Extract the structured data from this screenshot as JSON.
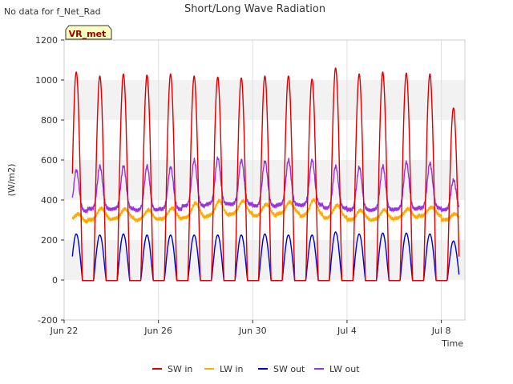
{
  "chart_data": {
    "type": "line",
    "title": "Short/Long Wave Radiation",
    "corner_note": "No data for f_Net_Rad",
    "station_label": "VR_met",
    "ylabel": "(W/m2)",
    "xlabel": "Time",
    "ylim": [
      -200,
      1200
    ],
    "yticks": [
      -200,
      0,
      200,
      400,
      600,
      800,
      1000,
      1200
    ],
    "xlim_days": [
      22,
      39
    ],
    "xticks": [
      {
        "day": 22,
        "label": "Jun 22"
      },
      {
        "day": 26,
        "label": "Jun 26"
      },
      {
        "day": 30,
        "label": "Jun 30"
      },
      {
        "day": 34,
        "label": "Jul 4"
      },
      {
        "day": 38,
        "label": "Jul 8"
      }
    ],
    "grid": true,
    "legend_position": "bottom",
    "series": [
      {
        "name": "SW in",
        "color": "#dd0000",
        "night": 0,
        "peaks": [
          1040,
          1020,
          1030,
          1025,
          1030,
          1020,
          1015,
          1010,
          1020,
          1020,
          1005,
          1060,
          1030,
          1040,
          1035,
          1030,
          860
        ]
      },
      {
        "name": "LW in",
        "color": "#ffaa00",
        "night": [
          290,
          300,
          305,
          300,
          305,
          310,
          320,
          330,
          320,
          330,
          320,
          310,
          300,
          300,
          310,
          320,
          300
        ],
        "peaks": [
          330,
          360,
          355,
          350,
          360,
          385,
          395,
          395,
          380,
          390,
          400,
          375,
          350,
          350,
          355,
          365,
          330
        ]
      },
      {
        "name": "SW out",
        "color": "#0000cc",
        "night": 0,
        "peaks": [
          230,
          225,
          230,
          225,
          225,
          225,
          225,
          225,
          230,
          225,
          225,
          240,
          230,
          235,
          235,
          230,
          195
        ]
      },
      {
        "name": "LW out",
        "color": "#9933dd",
        "night": [
          345,
          355,
          355,
          350,
          355,
          370,
          380,
          380,
          370,
          375,
          375,
          360,
          350,
          350,
          355,
          360,
          350
        ],
        "peaks": [
          550,
          570,
          570,
          570,
          565,
          600,
          610,
          600,
          595,
          600,
          600,
          570,
          565,
          570,
          590,
          585,
          500
        ]
      }
    ]
  }
}
